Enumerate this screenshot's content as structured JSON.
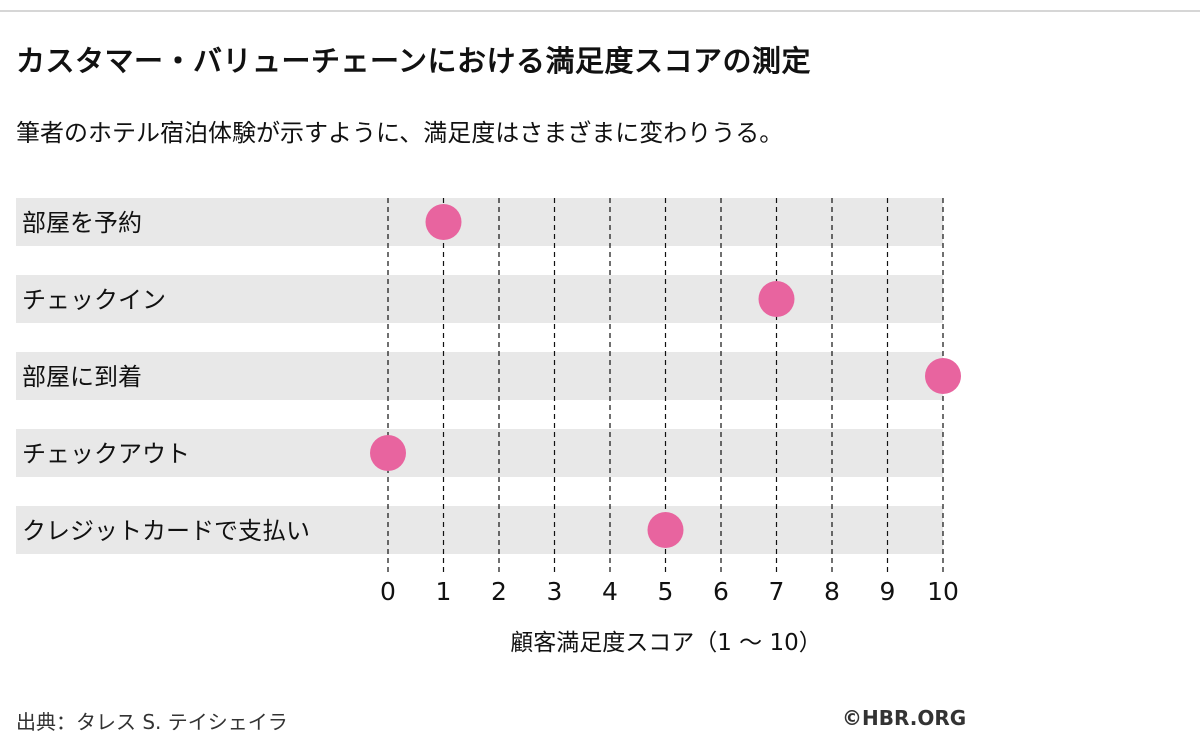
{
  "header": {
    "title": "カスタマー・バリューチェーンにおける満足度スコアの測定",
    "subtitle": "筆者のホテル宿泊体験が示すように、満足度はさまざまに変わりうる。"
  },
  "chart_data": {
    "type": "scatter",
    "categories": [
      "部屋を予約",
      "チェックイン",
      "部屋に到着",
      "チェックアウト",
      "クレジットカードで支払い"
    ],
    "values": [
      1,
      7,
      10,
      0,
      5
    ],
    "xlabel": "顧客満足度スコア（1 〜 10）",
    "ylabel": "",
    "xlim": [
      0,
      10
    ],
    "xticks": [
      "0",
      "1",
      "2",
      "3",
      "4",
      "5",
      "6",
      "7",
      "8",
      "9",
      "10"
    ],
    "grid": true,
    "grid_style": "dashed vertical",
    "row_band_color": "#e8e8e8",
    "marker_color": "#e8649f"
  },
  "footer": {
    "source": "出典：タレス S. テイシェイラ",
    "credit": "©HBR.ORG"
  }
}
